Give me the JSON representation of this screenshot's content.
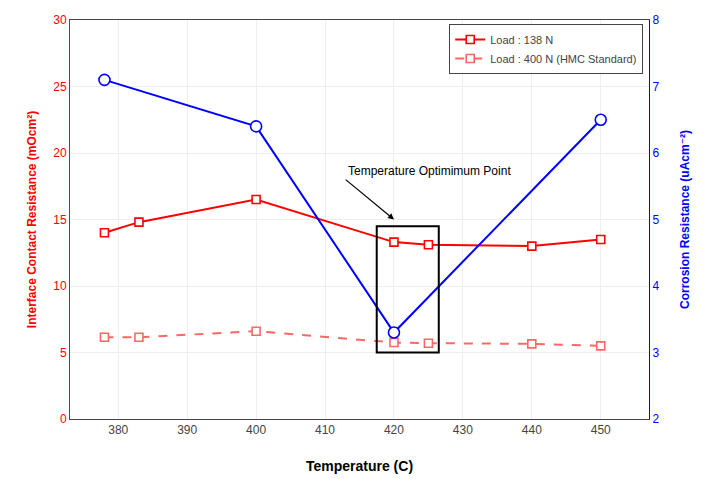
{
  "chart_data": {
    "type": "line",
    "xlabel": "Temperature (C)",
    "ylabel": "Interface Contact Resistance (mOcm²)",
    "y2label": "Corrosion Resistance (uAcm⁻²)",
    "xlim": [
      373,
      457
    ],
    "xticks": [
      380,
      390,
      400,
      410,
      420,
      430,
      440,
      450
    ],
    "ylim": [
      0,
      30
    ],
    "yticks": [
      0,
      5,
      10,
      15,
      20,
      25,
      30
    ],
    "y2lim": [
      2,
      8
    ],
    "y2ticks": [
      2,
      3,
      4,
      5,
      6,
      7,
      8
    ],
    "grid": true,
    "legend": "upper right",
    "series": [
      {
        "name": "Load : 138 N",
        "color": "#ff0000",
        "marker": "square",
        "line_style": "solid",
        "x": [
          378,
          383,
          400,
          420,
          425,
          440,
          450
        ],
        "values": [
          14.0,
          14.8,
          16.5,
          13.3,
          13.1,
          13.0,
          13.5
        ]
      },
      {
        "name": "Load : 400 N (HMC Standard)",
        "color": "#ff6666",
        "marker": "square",
        "line_style": "dashed",
        "x": [
          378,
          383,
          400,
          420,
          425,
          440,
          450
        ],
        "values": [
          6.15,
          6.15,
          6.6,
          5.75,
          5.7,
          5.65,
          5.5
        ]
      },
      {
        "color": "#0000ff",
        "marker": "circle",
        "line_style": "solid",
        "axis": "y2",
        "x": [
          378,
          400,
          420,
          450
        ],
        "values": [
          7.1,
          6.4,
          3.3,
          6.5
        ]
      }
    ],
    "annotations": [
      {
        "text": "Temperature Optimimum Point",
        "x": 420,
        "y": 15.0,
        "text_x": 413,
        "text_y": 18.0
      }
    ],
    "shapes": [
      {
        "type": "rect",
        "x0": 417.5,
        "x1": 426.5,
        "y0": 5.0,
        "y1": 14.5
      }
    ]
  }
}
